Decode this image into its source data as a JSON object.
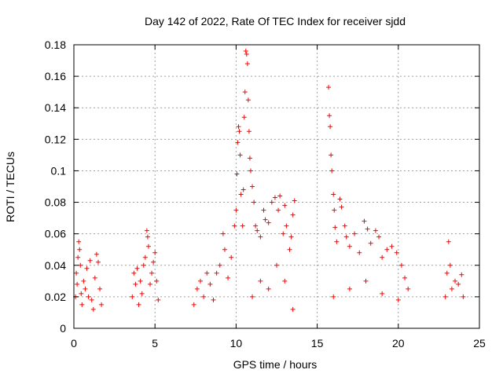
{
  "chart_data": {
    "type": "scatter",
    "title": "Day 142 of 2022, Rate Of TEC Index for receiver sjdd",
    "xlabel": "GPS time / hours",
    "ylabel": "ROTI / TECUs",
    "xlim": [
      0,
      25
    ],
    "ylim": [
      0,
      0.18
    ],
    "xticks": [
      "0",
      "5",
      "10",
      "15",
      "20",
      "25"
    ],
    "yticks": [
      "0",
      "0.02",
      "0.04",
      "0.06",
      "0.08",
      "0.1",
      "0.12",
      "0.14",
      "0.16",
      "0.18"
    ],
    "grid": true,
    "marker": "+",
    "series_color": "#ff0000",
    "series": [
      {
        "points": [
          [
            0.1,
            0.02
          ],
          [
            0.15,
            0.035
          ],
          [
            0.2,
            0.028
          ],
          [
            0.25,
            0.045
          ],
          [
            0.3,
            0.055
          ],
          [
            0.35,
            0.05
          ],
          [
            0.4,
            0.04
          ],
          [
            0.45,
            0.022
          ],
          [
            0.5,
            0.015
          ],
          [
            0.6,
            0.03
          ],
          [
            0.7,
            0.025
          ],
          [
            0.8,
            0.038
          ],
          [
            0.9,
            0.02
          ],
          [
            1.0,
            0.043
          ],
          [
            1.1,
            0.018
          ],
          [
            1.2,
            0.012
          ],
          [
            1.3,
            0.032
          ],
          [
            1.4,
            0.047
          ],
          [
            1.5,
            0.042
          ],
          [
            1.6,
            0.025
          ],
          [
            1.7,
            0.015
          ],
          [
            3.6,
            0.02
          ],
          [
            3.7,
            0.035
          ],
          [
            3.8,
            0.028
          ],
          [
            3.9,
            0.038
          ],
          [
            4.0,
            0.015
          ],
          [
            4.1,
            0.03
          ],
          [
            4.2,
            0.022
          ],
          [
            4.3,
            0.04
          ],
          [
            4.4,
            0.045
          ],
          [
            4.5,
            0.062
          ],
          [
            4.55,
            0.058
          ],
          [
            4.6,
            0.052
          ],
          [
            4.7,
            0.028
          ],
          [
            4.8,
            0.035
          ],
          [
            4.9,
            0.042
          ],
          [
            5.0,
            0.048
          ],
          [
            5.1,
            0.03
          ],
          [
            5.2,
            0.018
          ],
          [
            7.4,
            0.015
          ],
          [
            7.6,
            0.025
          ],
          [
            7.8,
            0.03
          ],
          [
            8.0,
            0.02
          ],
          [
            8.2,
            0.035
          ],
          [
            8.4,
            0.028
          ],
          [
            8.6,
            0.018
          ],
          [
            8.8,
            0.035
          ],
          [
            9.0,
            0.04
          ],
          [
            9.2,
            0.06
          ],
          [
            9.3,
            0.05
          ],
          [
            9.5,
            0.032
          ],
          [
            9.7,
            0.045
          ],
          [
            9.9,
            0.065
          ],
          [
            10.0,
            0.075
          ],
          [
            10.05,
            0.098
          ],
          [
            10.1,
            0.118
          ],
          [
            10.15,
            0.128
          ],
          [
            10.2,
            0.125
          ],
          [
            10.25,
            0.11
          ],
          [
            10.3,
            0.085
          ],
          [
            10.4,
            0.065
          ],
          [
            10.45,
            0.088
          ],
          [
            10.5,
            0.134
          ],
          [
            10.55,
            0.15
          ],
          [
            10.6,
            0.176
          ],
          [
            10.65,
            0.174
          ],
          [
            10.7,
            0.168
          ],
          [
            10.75,
            0.145
          ],
          [
            10.8,
            0.125
          ],
          [
            10.85,
            0.108
          ],
          [
            10.9,
            0.1
          ],
          [
            11.0,
            0.09
          ],
          [
            11.1,
            0.08
          ],
          [
            11.2,
            0.065
          ],
          [
            11.3,
            0.062
          ],
          [
            11.5,
            0.058
          ],
          [
            11.7,
            0.075
          ],
          [
            11.8,
            0.069
          ],
          [
            12.0,
            0.067
          ],
          [
            12.2,
            0.08
          ],
          [
            12.4,
            0.083
          ],
          [
            12.6,
            0.075
          ],
          [
            12.7,
            0.084
          ],
          [
            12.9,
            0.06
          ],
          [
            13.0,
            0.078
          ],
          [
            13.1,
            0.065
          ],
          [
            13.3,
            0.05
          ],
          [
            13.4,
            0.058
          ],
          [
            13.5,
            0.072
          ],
          [
            13.6,
            0.081
          ],
          [
            11.0,
            0.02
          ],
          [
            11.5,
            0.03
          ],
          [
            12.0,
            0.025
          ],
          [
            12.5,
            0.04
          ],
          [
            13.0,
            0.03
          ],
          [
            13.5,
            0.012
          ],
          [
            15.7,
            0.153
          ],
          [
            15.75,
            0.135
          ],
          [
            15.8,
            0.128
          ],
          [
            15.85,
            0.11
          ],
          [
            15.9,
            0.1
          ],
          [
            16.0,
            0.085
          ],
          [
            16.05,
            0.075
          ],
          [
            16.1,
            0.064
          ],
          [
            16.2,
            0.055
          ],
          [
            16.4,
            0.082
          ],
          [
            16.5,
            0.077
          ],
          [
            16.7,
            0.065
          ],
          [
            16.8,
            0.058
          ],
          [
            17.0,
            0.052
          ],
          [
            17.3,
            0.06
          ],
          [
            17.6,
            0.048
          ],
          [
            17.9,
            0.068
          ],
          [
            18.1,
            0.063
          ],
          [
            18.3,
            0.054
          ],
          [
            18.6,
            0.062
          ],
          [
            18.8,
            0.058
          ],
          [
            19.0,
            0.045
          ],
          [
            19.3,
            0.05
          ],
          [
            19.6,
            0.052
          ],
          [
            19.9,
            0.048
          ],
          [
            20.2,
            0.04
          ],
          [
            20.4,
            0.032
          ],
          [
            20.6,
            0.025
          ],
          [
            16.0,
            0.02
          ],
          [
            17.0,
            0.025
          ],
          [
            18.0,
            0.03
          ],
          [
            19.0,
            0.022
          ],
          [
            20.0,
            0.018
          ],
          [
            22.9,
            0.02
          ],
          [
            23.0,
            0.035
          ],
          [
            23.1,
            0.055
          ],
          [
            23.2,
            0.04
          ],
          [
            23.3,
            0.025
          ],
          [
            23.5,
            0.03
          ],
          [
            23.7,
            0.028
          ],
          [
            23.9,
            0.034
          ],
          [
            24.0,
            0.02
          ]
        ]
      }
    ]
  }
}
